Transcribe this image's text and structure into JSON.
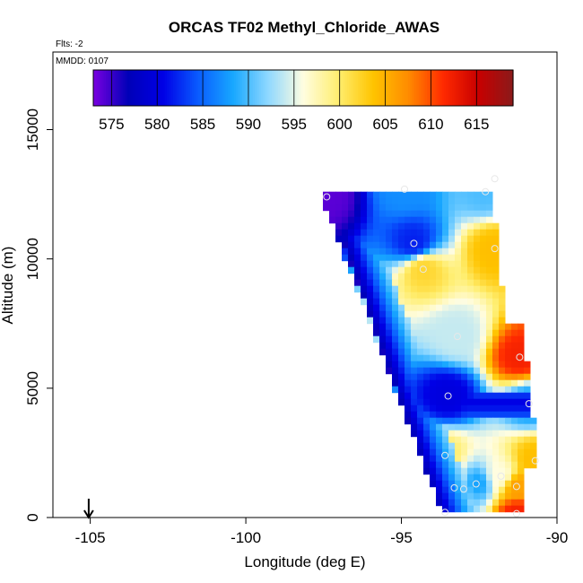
{
  "chart_data": {
    "type": "heatmap",
    "title": "ORCAS TF02 Methyl_Chloride_AWAS",
    "subtitle_flts": "Flts: -2",
    "subtitle_mmdd": "MMDD: 0107",
    "xlabel": "Longitude (deg E)",
    "ylabel": "Altitude (m)",
    "xlim": [
      -106.2,
      -90
    ],
    "ylim": [
      0,
      18000
    ],
    "x_ticks": [
      -105,
      -100,
      -95,
      -90
    ],
    "x_tick_labels": [
      "-105",
      "-100",
      "-95",
      "-90"
    ],
    "y_ticks": [
      0,
      5000,
      10000,
      15000
    ],
    "y_tick_labels": [
      "0",
      "5000",
      "10000",
      "15000"
    ],
    "colorbar": {
      "range": [
        573,
        619
      ],
      "ticks": [
        575,
        580,
        585,
        590,
        595,
        600,
        605,
        610,
        615
      ],
      "tick_labels": [
        "575",
        "580",
        "585",
        "590",
        "595",
        "600",
        "605",
        "610",
        "615"
      ],
      "colors": [
        "#7a00e0",
        "#0000b8",
        "#0000e6",
        "#0a5cff",
        "#18a8ff",
        "#8fd8ff",
        "#fffde0",
        "#ffee70",
        "#ffc400",
        "#ff8c00",
        "#ff2a00",
        "#c80000",
        "#8b1a1a"
      ]
    },
    "flight_marker": {
      "longitude": -105.05,
      "label": "arrow"
    },
    "samples": [
      {
        "lon": -93.6,
        "alt": 200,
        "value": 588
      },
      {
        "lon": -93.3,
        "alt": 1150,
        "value": 603
      },
      {
        "lon": -93.0,
        "alt": 1100,
        "value": 590
      },
      {
        "lon": -92.6,
        "alt": 1300,
        "value": 588
      },
      {
        "lon": -91.8,
        "alt": 1600,
        "value": 596
      },
      {
        "lon": -91.3,
        "alt": 1200,
        "value": 606
      },
      {
        "lon": -91.3,
        "alt": 150,
        "value": 612
      },
      {
        "lon": -90.7,
        "alt": 2200,
        "value": 604
      },
      {
        "lon": -93.6,
        "alt": 2400,
        "value": 600
      },
      {
        "lon": -93.5,
        "alt": 4700,
        "value": 580
      },
      {
        "lon": -90.9,
        "alt": 4400,
        "value": 588
      },
      {
        "lon": -91.2,
        "alt": 6200,
        "value": 612
      },
      {
        "lon": -93.2,
        "alt": 7000,
        "value": 594
      },
      {
        "lon": -94.3,
        "alt": 9600,
        "value": 602
      },
      {
        "lon": -94.6,
        "alt": 10600,
        "value": 582
      },
      {
        "lon": -92.0,
        "alt": 10400,
        "value": 604
      },
      {
        "lon": -94.9,
        "alt": 12700,
        "value": 587
      },
      {
        "lon": -92.3,
        "alt": 12600,
        "value": 590
      },
      {
        "lon": -92.0,
        "alt": 13100,
        "value": 592
      },
      {
        "lon": -97.4,
        "alt": 12400,
        "value": 574
      }
    ]
  }
}
